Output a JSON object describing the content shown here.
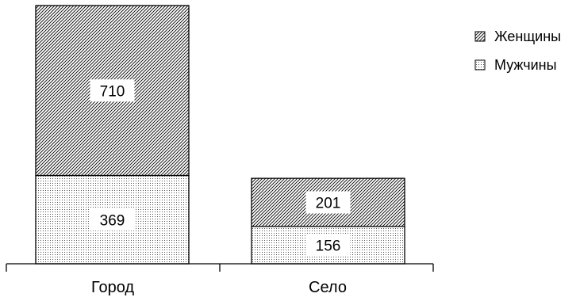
{
  "chart_data": {
    "type": "bar",
    "stacked": true,
    "categories": [
      "Город",
      "Село"
    ],
    "series": [
      {
        "name": "Мужчины",
        "values": [
          369,
          156
        ],
        "pattern": "dots"
      },
      {
        "name": "Женщины",
        "values": [
          710,
          201
        ],
        "pattern": "hatch"
      }
    ],
    "ylim": [
      0,
      1079
    ],
    "grid": false,
    "legend_position": "top-right",
    "colors": {
      "stroke": "#000000",
      "background": "#ffffff",
      "label_box": "#ffffff"
    }
  }
}
